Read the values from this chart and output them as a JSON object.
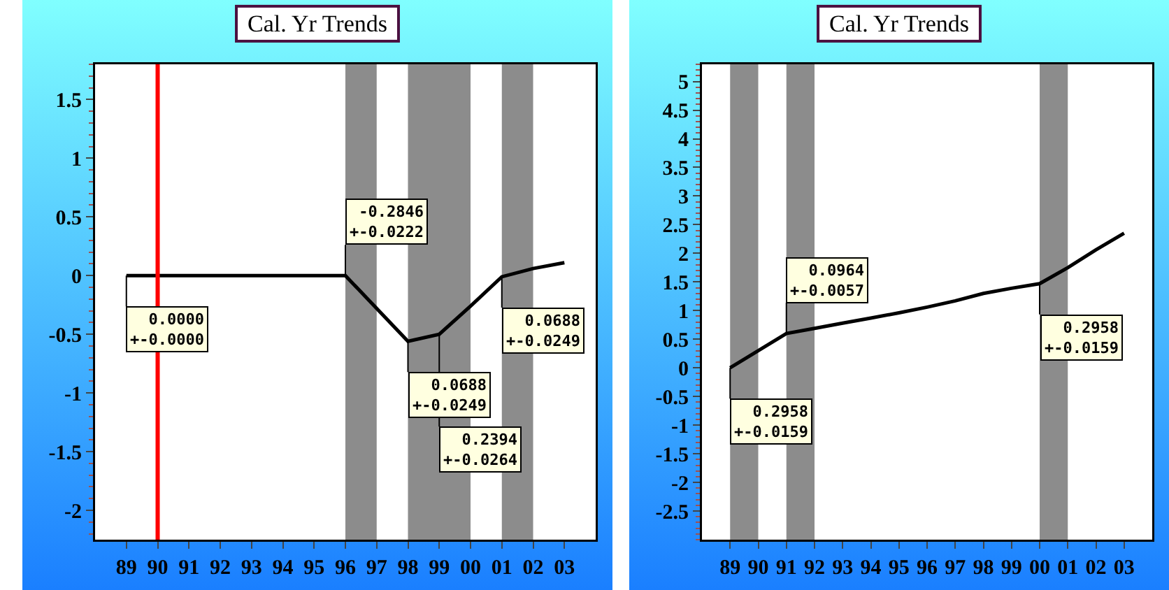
{
  "chart_data": [
    {
      "type": "line",
      "title": "Cal. Yr Trends",
      "x": [
        1989,
        1990,
        1991,
        1992,
        1993,
        1994,
        1995,
        1996,
        1997,
        1998,
        1999,
        2000,
        2001,
        2002,
        2003
      ],
      "values": [
        0,
        0,
        0,
        0,
        0,
        0,
        0,
        0,
        -0.28,
        -0.56,
        -0.5,
        -0.26,
        -0.01,
        0.06,
        0.11
      ],
      "color": "#000000",
      "marker": "none",
      "line_style": "solid",
      "grid": false,
      "xlim": [
        1988,
        2004
      ],
      "xticks": [
        {
          "value": 1989,
          "label": "89"
        },
        {
          "value": 1990,
          "label": "90"
        },
        {
          "value": 1991,
          "label": "91"
        },
        {
          "value": 1992,
          "label": "92"
        },
        {
          "value": 1993,
          "label": "93"
        },
        {
          "value": 1994,
          "label": "94"
        },
        {
          "value": 1995,
          "label": "95"
        },
        {
          "value": 1996,
          "label": "96"
        },
        {
          "value": 1997,
          "label": "97"
        },
        {
          "value": 1998,
          "label": "98"
        },
        {
          "value": 1999,
          "label": "99"
        },
        {
          "value": 2000,
          "label": "00"
        },
        {
          "value": 2001,
          "label": "01"
        },
        {
          "value": 2002,
          "label": "02"
        },
        {
          "value": 2003,
          "label": "03"
        }
      ],
      "ylim": [
        -2.25,
        1.8
      ],
      "yticks": [
        -2,
        -1.5,
        -1,
        -0.5,
        0,
        0.5,
        1,
        1.5
      ],
      "bands": [
        {
          "axis": "x",
          "from": 1996,
          "to": 1997,
          "color": "#8c8c8c"
        },
        {
          "axis": "x",
          "from": 1998,
          "to": 2000,
          "color": "#8c8c8c"
        },
        {
          "axis": "x",
          "from": 2001,
          "to": 2002,
          "color": "#8c8c8c"
        }
      ],
      "ref_lines": [
        {
          "axis": "x",
          "value": 1990,
          "color": "#ff0000"
        }
      ],
      "annotations": [
        {
          "text": "0.0000\n+-0.0000",
          "x": 1989,
          "y": 0
        },
        {
          "text": "-0.2846\n+-0.0222",
          "x": 1996,
          "y": 0
        },
        {
          "text": "0.0688\n+-0.0249",
          "x": 1998,
          "y": -0.56
        },
        {
          "text": "0.2394\n+-0.0264",
          "x": 1999,
          "y": -0.5
        },
        {
          "text": "0.0688\n+-0.0249",
          "x": 2001,
          "y": -0.01
        }
      ]
    },
    {
      "type": "line",
      "title": "Cal. Yr Trends",
      "x": [
        1989,
        1990,
        1991,
        1992,
        1993,
        1994,
        1995,
        1996,
        1997,
        1998,
        1999,
        2000,
        2001,
        2002,
        2003
      ],
      "values": [
        0,
        0.3,
        0.6,
        0.69,
        0.78,
        0.87,
        0.96,
        1.06,
        1.17,
        1.3,
        1.39,
        1.47,
        1.75,
        2.06,
        2.35
      ],
      "color": "#000000",
      "marker": "none",
      "line_style": "solid",
      "grid": false,
      "xlim": [
        1988,
        2004
      ],
      "xticks": [
        {
          "value": 1989,
          "label": "89"
        },
        {
          "value": 1990,
          "label": "90"
        },
        {
          "value": 1991,
          "label": "91"
        },
        {
          "value": 1992,
          "label": "92"
        },
        {
          "value": 1993,
          "label": "93"
        },
        {
          "value": 1994,
          "label": "94"
        },
        {
          "value": 1995,
          "label": "95"
        },
        {
          "value": 1996,
          "label": "96"
        },
        {
          "value": 1997,
          "label": "97"
        },
        {
          "value": 1998,
          "label": "98"
        },
        {
          "value": 1999,
          "label": "99"
        },
        {
          "value": 2000,
          "label": "00"
        },
        {
          "value": 2001,
          "label": "01"
        },
        {
          "value": 2002,
          "label": "02"
        },
        {
          "value": 2003,
          "label": "03"
        }
      ],
      "ylim": [
        -3,
        5.3
      ],
      "yticks": [
        -2.5,
        -2,
        -1.5,
        -1,
        -0.5,
        0,
        0.5,
        1,
        1.5,
        2,
        2.5,
        3,
        3.5,
        4,
        4.5,
        5
      ],
      "bands": [
        {
          "axis": "x",
          "from": 1989,
          "to": 1990,
          "color": "#8c8c8c"
        },
        {
          "axis": "x",
          "from": 1991,
          "to": 1992,
          "color": "#8c8c8c"
        },
        {
          "axis": "x",
          "from": 2000,
          "to": 2001,
          "color": "#8c8c8c"
        }
      ],
      "annotations": [
        {
          "text": "0.2958\n+-0.0159",
          "x": 1989,
          "y": 0
        },
        {
          "text": "0.0964\n+-0.0057",
          "x": 1991,
          "y": 0.6
        },
        {
          "text": "0.2958\n+-0.0159",
          "x": 2000,
          "y": 1.47
        }
      ]
    }
  ]
}
